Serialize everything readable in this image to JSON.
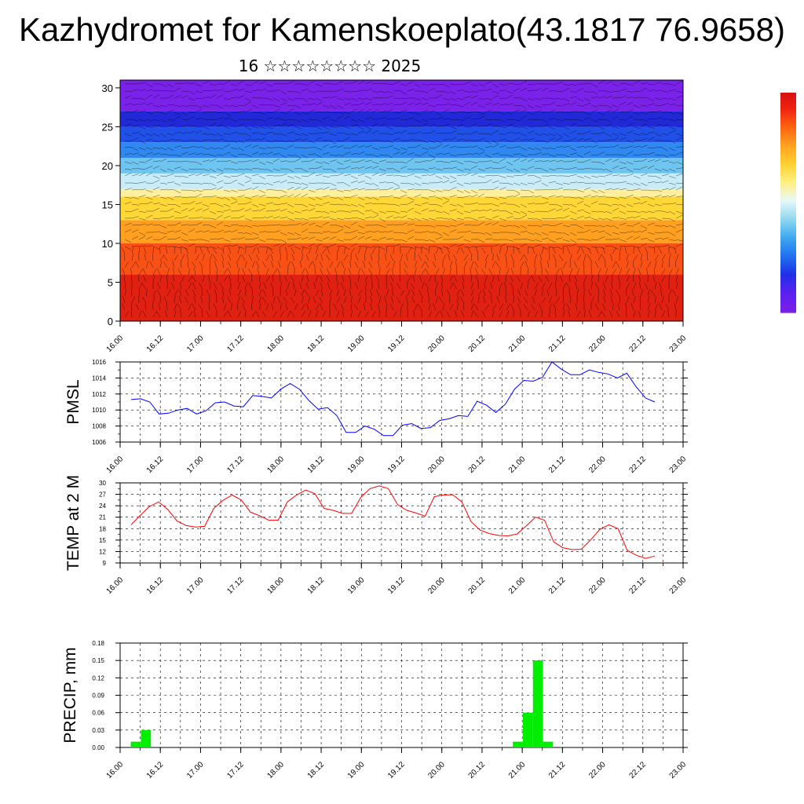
{
  "title": "Kazhydromet for Kamenskoeplato(43.1817 76.9658)",
  "subtitle": "16 ☆☆☆☆☆☆☆☆ 2025",
  "colors": {
    "pmsl": "#0000ff",
    "temp": "#ff0000",
    "precip": "#00ee00",
    "colorbar": [
      "#7b20e8",
      "#5a20f0",
      "#2030e8",
      "#2070f0",
      "#40a8f0",
      "#90d8f0",
      "#e8f8f8",
      "#fff080",
      "#ffd030",
      "#ffa020",
      "#ff6010",
      "#f02010",
      "#d01010",
      "#ffffff"
    ]
  },
  "time_ticks": [
    "16.00",
    "16.12",
    "17.00",
    "17.12",
    "18.00",
    "18.12",
    "19.00",
    "19.12",
    "20.00",
    "20.12",
    "21.00",
    "21.12",
    "22.00",
    "22.12",
    "23.00"
  ],
  "chart_data": [
    {
      "type": "heatmap",
      "title": "",
      "xlabel": "",
      "ylabel": "",
      "y_ticks": [
        "0",
        "5",
        "10",
        "15",
        "20",
        "25",
        "30"
      ],
      "ylim": [
        0,
        31
      ],
      "x": [
        "16.00",
        "23.00"
      ],
      "layers": [
        {
          "from": 0,
          "to": 6,
          "color": "#e02010"
        },
        {
          "from": 6,
          "to": 10,
          "color": "#f85015"
        },
        {
          "from": 10,
          "to": 13,
          "color": "#ffa020"
        },
        {
          "from": 13,
          "to": 16,
          "color": "#ffd838"
        },
        {
          "from": 16,
          "to": 17,
          "color": "#fff0a0"
        },
        {
          "from": 17,
          "to": 19,
          "color": "#c8ecf8"
        },
        {
          "from": 19,
          "to": 21,
          "color": "#70c4f0"
        },
        {
          "from": 21,
          "to": 23,
          "color": "#3088f0"
        },
        {
          "from": 23,
          "to": 25,
          "color": "#2050e8"
        },
        {
          "from": 25,
          "to": 27,
          "color": "#2028d8"
        },
        {
          "from": 27,
          "to": 31,
          "color": "#7a22ea"
        }
      ]
    },
    {
      "type": "line",
      "ylabel": "PMSL",
      "ylim": [
        1006,
        1016
      ],
      "y_ticks": [
        "1006",
        "1008",
        "1010",
        "1012",
        "1014",
        "1016"
      ],
      "series": [
        {
          "values": [
            1011.3,
            1011.4,
            1011.0,
            1009.5,
            1009.6,
            1010.0,
            1010.2,
            1009.5,
            1009.9,
            1010.9,
            1011.0,
            1010.5,
            1010.4,
            1011.8,
            1011.7,
            1011.5,
            1012.6,
            1013.3,
            1012.6,
            1011.2,
            1010.1,
            1010.3,
            1009.3,
            1007.2,
            1007.2,
            1008.0,
            1007.6,
            1006.8,
            1006.8,
            1008.1,
            1008.3,
            1007.7,
            1007.8,
            1008.7,
            1008.9,
            1009.3,
            1009.2,
            1011.1,
            1010.6,
            1009.7,
            1010.7,
            1012.6,
            1013.7,
            1013.6,
            1014.1,
            1016.0,
            1015.1,
            1014.4,
            1014.4,
            1015.0,
            1014.7,
            1014.5,
            1014.0,
            1014.6,
            1012.9,
            1011.5,
            1011.0
          ]
        }
      ]
    },
    {
      "type": "line",
      "ylabel": "TEMP at 2 M",
      "ylim": [
        9,
        30
      ],
      "y_ticks": [
        "9",
        "12",
        "15",
        "18",
        "21",
        "24",
        "27",
        "30"
      ],
      "series": [
        {
          "values": [
            19.0,
            21.5,
            23.8,
            25.0,
            23.0,
            20.0,
            18.8,
            18.4,
            18.6,
            23.3,
            25.4,
            26.8,
            25.5,
            22.3,
            21.4,
            20.2,
            20.2,
            25.0,
            26.8,
            28.1,
            27.2,
            23.3,
            22.8,
            22.0,
            22.0,
            26.2,
            28.5,
            29.2,
            28.5,
            24.3,
            22.8,
            22.1,
            21.3,
            26.4,
            26.8,
            26.9,
            25.0,
            19.8,
            17.6,
            16.7,
            16.2,
            16.1,
            16.6,
            18.7,
            21.0,
            20.2,
            14.5,
            13.0,
            12.5,
            12.6,
            15.0,
            17.8,
            19.0,
            18.0,
            12.3,
            11.0,
            10.2,
            10.8
          ]
        }
      ]
    },
    {
      "type": "bar",
      "ylabel": "PRECIP, mm",
      "ylim": [
        0,
        0.18
      ],
      "y_ticks": [
        "0.00",
        "0.03",
        "0.06",
        "0.09",
        "0.12",
        "0.15",
        "0.18"
      ],
      "series": [
        {
          "bars": [
            {
              "t": 1,
              "value": 0.01
            },
            {
              "t": 2,
              "value": 0.03
            },
            {
              "t": 39,
              "value": 0.01
            },
            {
              "t": 40,
              "value": 0.06
            },
            {
              "t": 41,
              "value": 0.15
            },
            {
              "t": 42,
              "value": 0.01
            }
          ]
        }
      ]
    }
  ]
}
